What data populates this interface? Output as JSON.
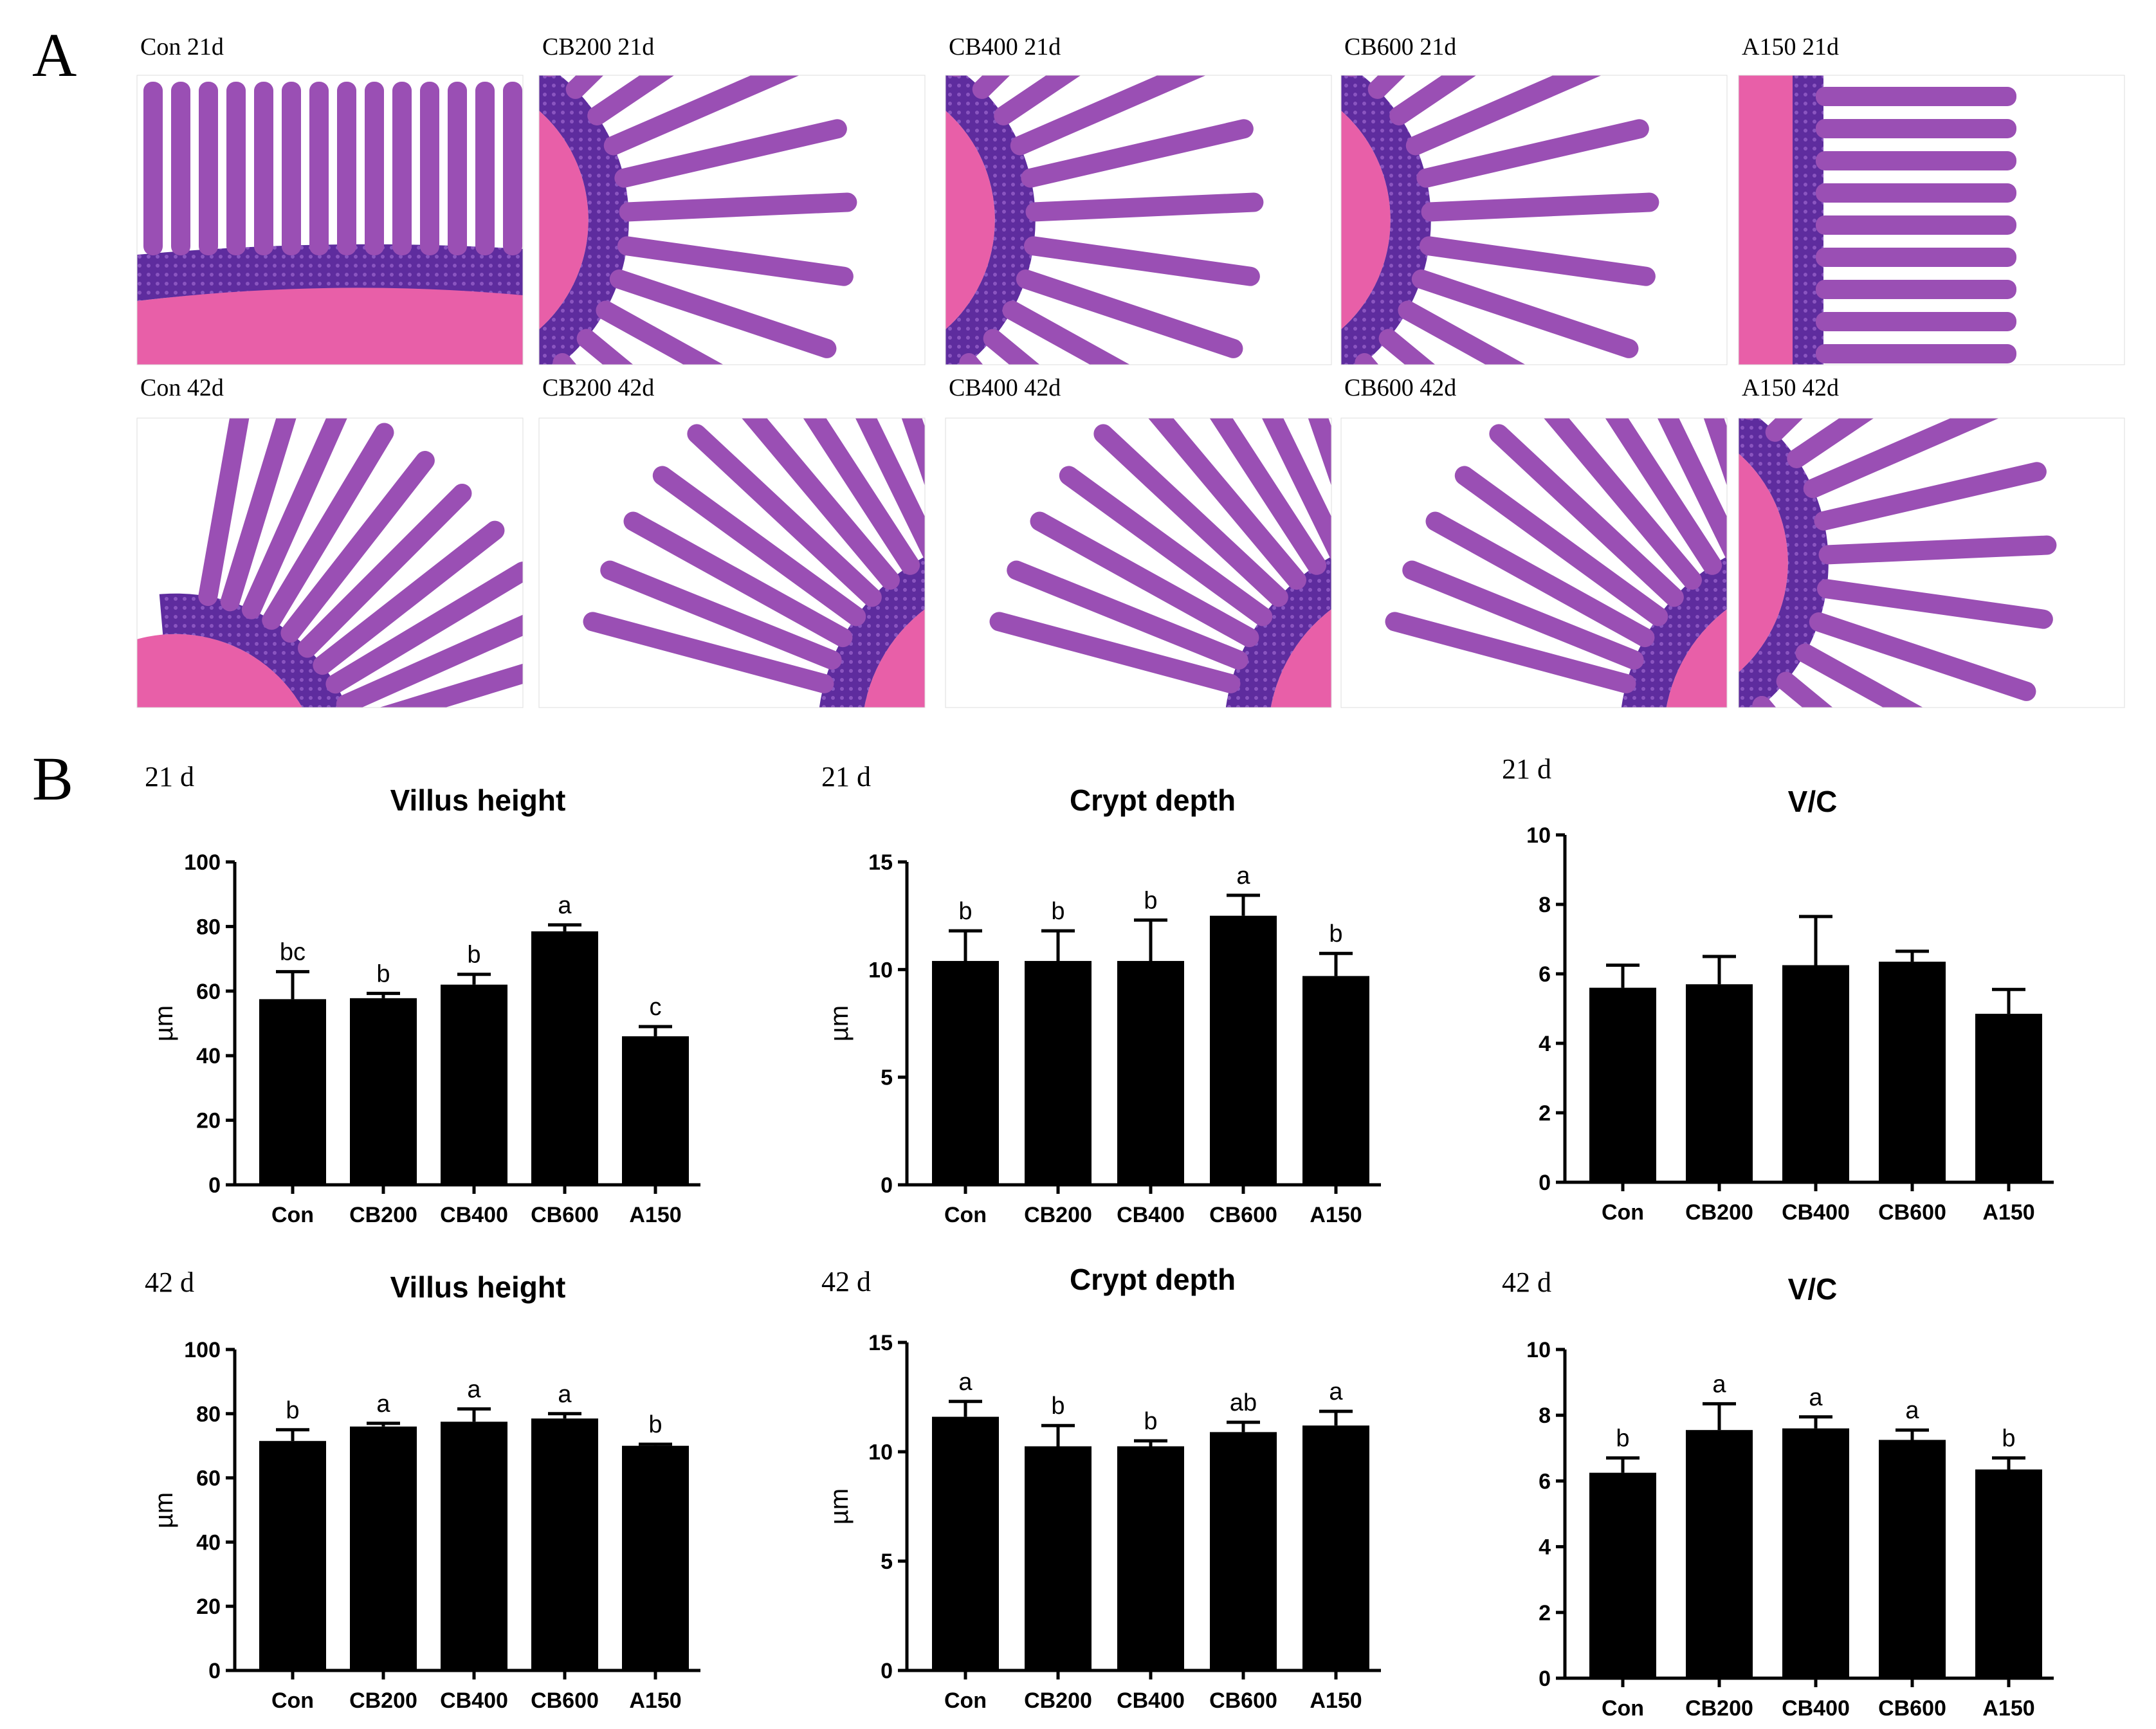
{
  "panelA": {
    "letter": "A",
    "micrographs": [
      {
        "label": "Con 21d",
        "style": "vertical"
      },
      {
        "label": "CB200 21d",
        "style": "fan-left"
      },
      {
        "label": "CB400 21d",
        "style": "fan-left"
      },
      {
        "label": "CB600 21d",
        "style": "fan-left"
      },
      {
        "label": "A150 21d",
        "style": "comb"
      },
      {
        "label": "Con 42d",
        "style": "fan-bottom"
      },
      {
        "label": "CB200 42d",
        "style": "fan-right"
      },
      {
        "label": "CB400 42d",
        "style": "fan-right"
      },
      {
        "label": "CB600 42d",
        "style": "fan-right"
      },
      {
        "label": "A150 42d",
        "style": "fan-left"
      }
    ],
    "colors": {
      "muscle": "#e85fa8",
      "villus": "#9a4fb4",
      "crypt": "#5e2c9e",
      "background": "#ffffff"
    }
  },
  "panelB": {
    "letter": "B"
  },
  "chart_data": [
    {
      "type": "bar",
      "group": "21 d",
      "title": "Villus height",
      "ylabel": "µm",
      "categories": [
        "Con",
        "CB200",
        "CB400",
        "CB600",
        "A150"
      ],
      "values": [
        57.5,
        57.8,
        62,
        78.5,
        46
      ],
      "errors": [
        8.5,
        1.5,
        3.2,
        2,
        3
      ],
      "letters": [
        "bc",
        "b",
        "b",
        "a",
        "c"
      ],
      "ylim": [
        0,
        100
      ],
      "yticks": [
        0,
        20,
        40,
        60,
        80,
        100
      ],
      "bar_color": "#000000",
      "grid": false
    },
    {
      "type": "bar",
      "group": "21 d",
      "title": "Crypt depth",
      "ylabel": "µm",
      "categories": [
        "Con",
        "CB200",
        "CB400",
        "CB600",
        "A150"
      ],
      "values": [
        10.4,
        10.4,
        10.4,
        12.5,
        9.7
      ],
      "errors": [
        1.4,
        1.4,
        1.9,
        0.95,
        1.05
      ],
      "letters": [
        "b",
        "b",
        "b",
        "a",
        "b"
      ],
      "ylim": [
        0,
        15
      ],
      "yticks": [
        0,
        5,
        10,
        15
      ],
      "bar_color": "#000000",
      "grid": false
    },
    {
      "type": "bar",
      "group": "21 d",
      "title": "V/C",
      "ylabel": "",
      "categories": [
        "Con",
        "CB200",
        "CB400",
        "CB600",
        "A150"
      ],
      "values": [
        5.6,
        5.7,
        6.25,
        6.35,
        4.85
      ],
      "errors": [
        0.65,
        0.8,
        1.4,
        0.3,
        0.7
      ],
      "letters": [
        "",
        "",
        "",
        "",
        ""
      ],
      "ylim": [
        0,
        10
      ],
      "yticks": [
        0,
        2,
        4,
        6,
        8,
        10
      ],
      "bar_color": "#000000",
      "grid": false
    },
    {
      "type": "bar",
      "group": "42 d",
      "title": "Villus height",
      "ylabel": "µm",
      "categories": [
        "Con",
        "CB200",
        "CB400",
        "CB600",
        "A150"
      ],
      "values": [
        71.5,
        76,
        77.5,
        78.5,
        70
      ],
      "errors": [
        3.5,
        1,
        4,
        1.5,
        0.5
      ],
      "letters": [
        "b",
        "a",
        "a",
        "a",
        "b"
      ],
      "ylim": [
        0,
        100
      ],
      "yticks": [
        0,
        20,
        40,
        60,
        80,
        100
      ],
      "bar_color": "#000000",
      "grid": false
    },
    {
      "type": "bar",
      "group": "42 d",
      "title": "Crypt depth",
      "ylabel": "µm",
      "categories": [
        "Con",
        "CB200",
        "CB400",
        "CB600",
        "A150"
      ],
      "values": [
        11.6,
        10.25,
        10.25,
        10.9,
        11.2
      ],
      "errors": [
        0.7,
        0.95,
        0.25,
        0.45,
        0.65
      ],
      "letters": [
        "a",
        "b",
        "b",
        "ab",
        "a"
      ],
      "ylim": [
        0,
        15
      ],
      "yticks": [
        0,
        5,
        10,
        15
      ],
      "bar_color": "#000000",
      "grid": false
    },
    {
      "type": "bar",
      "group": "42 d",
      "title": "V/C",
      "ylabel": "",
      "categories": [
        "Con",
        "CB200",
        "CB400",
        "CB600",
        "A150"
      ],
      "values": [
        6.25,
        7.55,
        7.6,
        7.25,
        6.35
      ],
      "errors": [
        0.45,
        0.8,
        0.35,
        0.3,
        0.35
      ],
      "letters": [
        "b",
        "a",
        "a",
        "a",
        "b"
      ],
      "ylim": [
        0,
        10
      ],
      "yticks": [
        0,
        2,
        4,
        6,
        8,
        10
      ],
      "bar_color": "#000000",
      "grid": false
    }
  ]
}
